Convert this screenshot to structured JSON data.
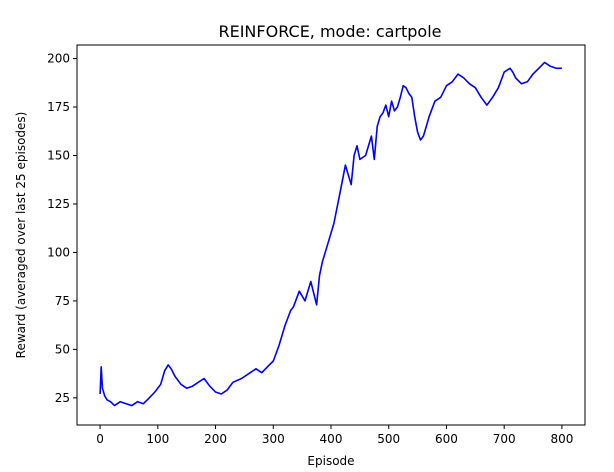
{
  "chart_data": {
    "type": "line",
    "title": "REINFORCE, mode: cartpole",
    "xlabel": "Episode",
    "ylabel": "Reward (averaged over last 25 episodes)",
    "xlim": [
      -40,
      840
    ],
    "ylim": [
      11,
      207
    ],
    "xticks": [
      0,
      100,
      200,
      300,
      400,
      500,
      600,
      700,
      800
    ],
    "yticks": [
      25,
      50,
      75,
      100,
      125,
      150,
      175,
      200
    ],
    "grid": false,
    "series": [
      {
        "color": "#0000ff",
        "x": [
          0,
          2,
          4,
          8,
          12,
          18,
          25,
          35,
          45,
          55,
          65,
          75,
          85,
          95,
          105,
          112,
          118,
          123,
          130,
          140,
          150,
          160,
          170,
          180,
          190,
          200,
          210,
          220,
          230,
          245,
          260,
          270,
          280,
          290,
          300,
          310,
          320,
          330,
          335,
          345,
          355,
          365,
          375,
          380,
          385,
          395,
          405,
          415,
          425,
          430,
          435,
          440,
          445,
          450,
          460,
          470,
          475,
          480,
          485,
          490,
          495,
          500,
          505,
          510,
          515,
          520,
          525,
          530,
          535,
          540,
          545,
          550,
          555,
          560,
          565,
          570,
          580,
          590,
          600,
          610,
          620,
          630,
          640,
          650,
          660,
          670,
          680,
          690,
          700,
          710,
          715,
          720,
          730,
          740,
          750,
          760,
          770,
          780,
          790,
          800
        ],
        "y": [
          27,
          41,
          30,
          26,
          24,
          23,
          21,
          23,
          22,
          21,
          23,
          22,
          25,
          28,
          32,
          39,
          42,
          40,
          36,
          32,
          30,
          31,
          33,
          35,
          31,
          28,
          27,
          29,
          33,
          35,
          38,
          40,
          38,
          41,
          44,
          52,
          62,
          70,
          72,
          80,
          75,
          85,
          73,
          88,
          95,
          105,
          115,
          130,
          145,
          140,
          135,
          150,
          155,
          148,
          150,
          160,
          148,
          165,
          170,
          172,
          176,
          170,
          178,
          173,
          175,
          180,
          186,
          185,
          182,
          180,
          170,
          162,
          158,
          160,
          165,
          170,
          178,
          180,
          186,
          188,
          192,
          190,
          187,
          185,
          180,
          176,
          180,
          185,
          193,
          195,
          193,
          190,
          187,
          188,
          192,
          195,
          198,
          196,
          195,
          195
        ]
      }
    ]
  }
}
